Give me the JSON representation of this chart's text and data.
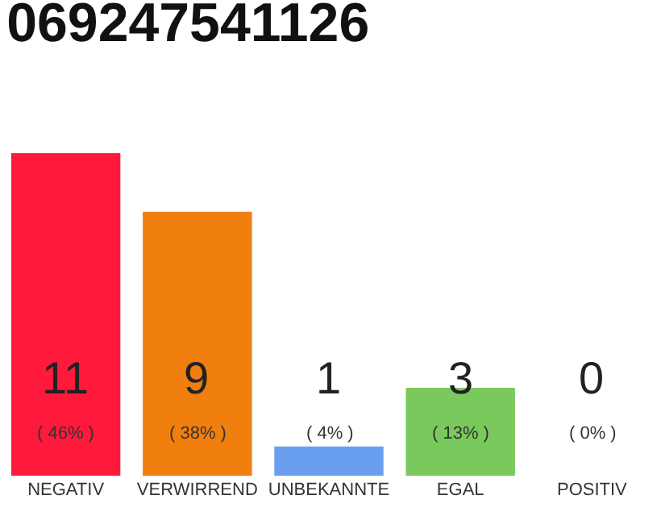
{
  "chart_data": {
    "type": "bar",
    "title": "069247541126",
    "categories": [
      "NEGATIV",
      "VERWIRREND",
      "UNBEKANNTE",
      "EGAL",
      "POSITIV"
    ],
    "values": [
      11,
      9,
      1,
      3,
      0
    ],
    "colors": [
      "#ff1a3c",
      "#f07f0e",
      "#6a9ff0",
      "#7ac95c",
      "#21a64a"
    ],
    "ylim": [
      0,
      11
    ],
    "tick_labels": "x",
    "value_labels": [
      "11\n( 46% )",
      "9\n( 38% )",
      "1\n( 4% )",
      "3\n( 13% )",
      "0\n( 0% )"
    ]
  }
}
